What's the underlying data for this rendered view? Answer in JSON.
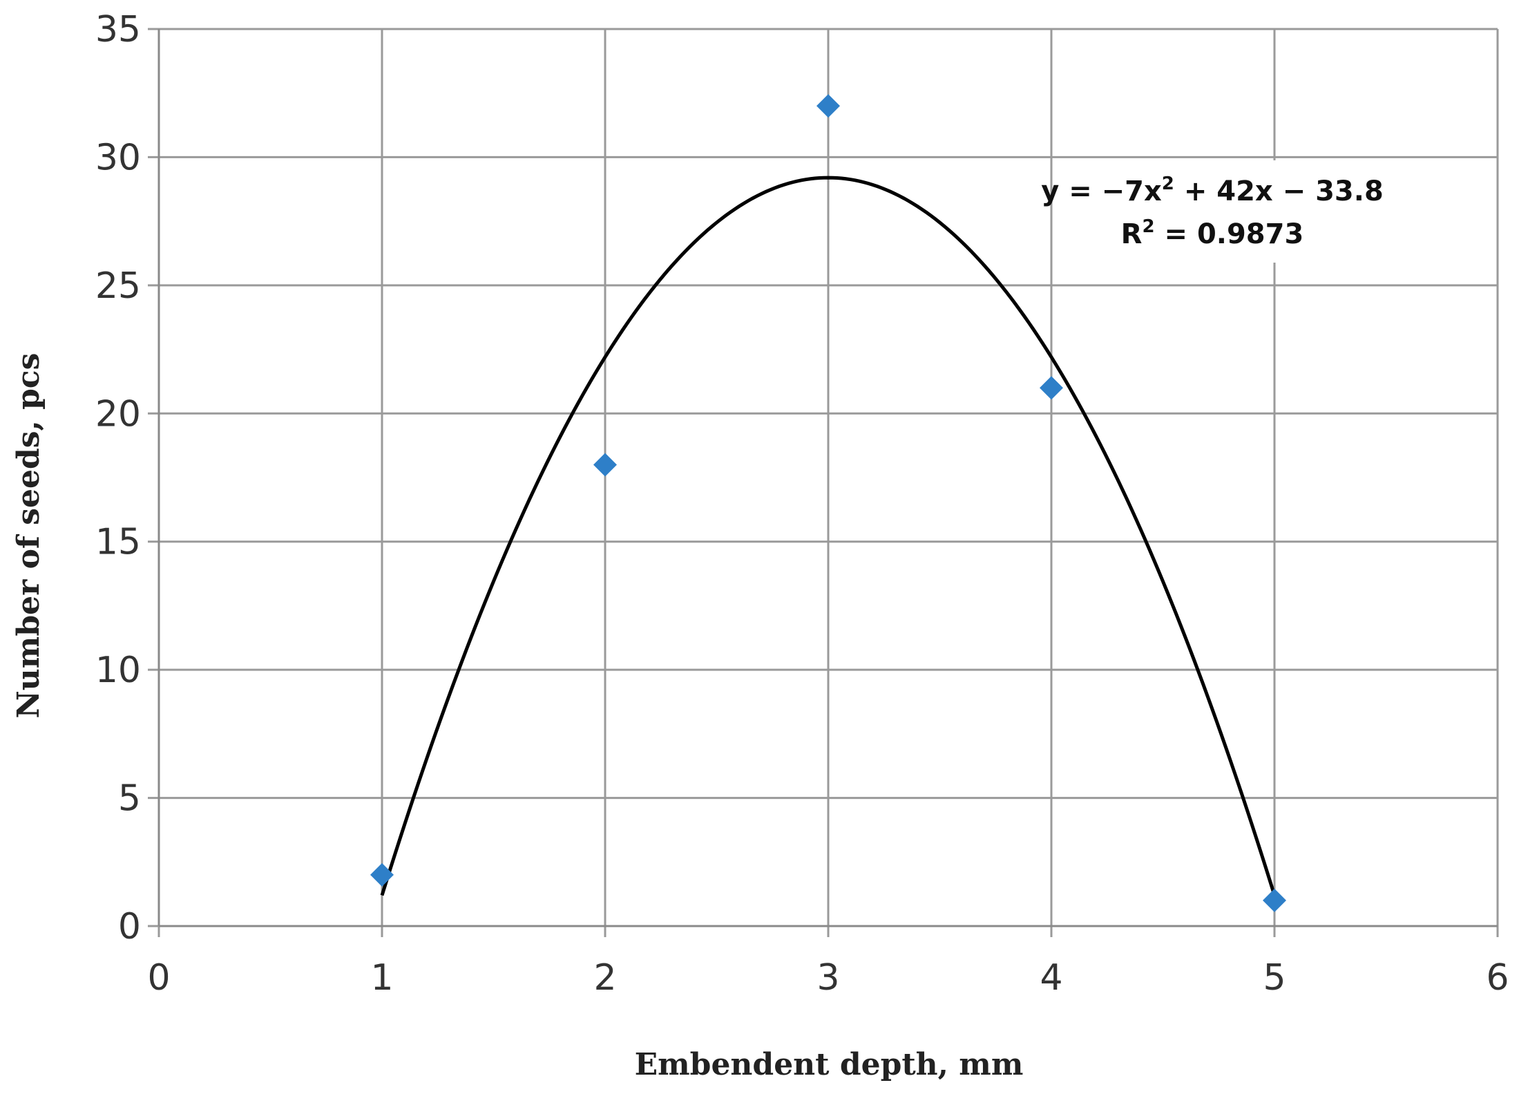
{
  "chart_data": {
    "type": "scatter",
    "title": "",
    "xlabel": "Embendent depth, mm",
    "ylabel": "Number of seeds, pcs",
    "xlim": [
      0,
      6
    ],
    "ylim": [
      0,
      35
    ],
    "xticks": [
      0,
      1,
      2,
      3,
      4,
      5,
      6
    ],
    "yticks": [
      0,
      5,
      10,
      15,
      20,
      25,
      30,
      35
    ],
    "grid": true,
    "legend": "none",
    "series": [
      {
        "type": "scatter",
        "marker": "diamond",
        "color": "#2e7fc8",
        "points": [
          {
            "x": 1,
            "y": 2
          },
          {
            "x": 2,
            "y": 18
          },
          {
            "x": 3,
            "y": 32
          },
          {
            "x": 4,
            "y": 21
          },
          {
            "x": 5,
            "y": 1
          }
        ]
      },
      {
        "type": "trendline",
        "fit": "polynomial",
        "order": 2,
        "coefficients": {
          "a": -7,
          "b": 42,
          "c": -33.8
        },
        "x_range": [
          1,
          5
        ],
        "color": "#000000"
      }
    ],
    "annotations": {
      "equation": {
        "prefix": "y = −7x",
        "exponent": "2",
        "suffix": " + 42x − 33.8"
      },
      "r_squared": {
        "prefix": "R",
        "exponent": "2",
        "suffix": " = 0.9873"
      }
    }
  }
}
